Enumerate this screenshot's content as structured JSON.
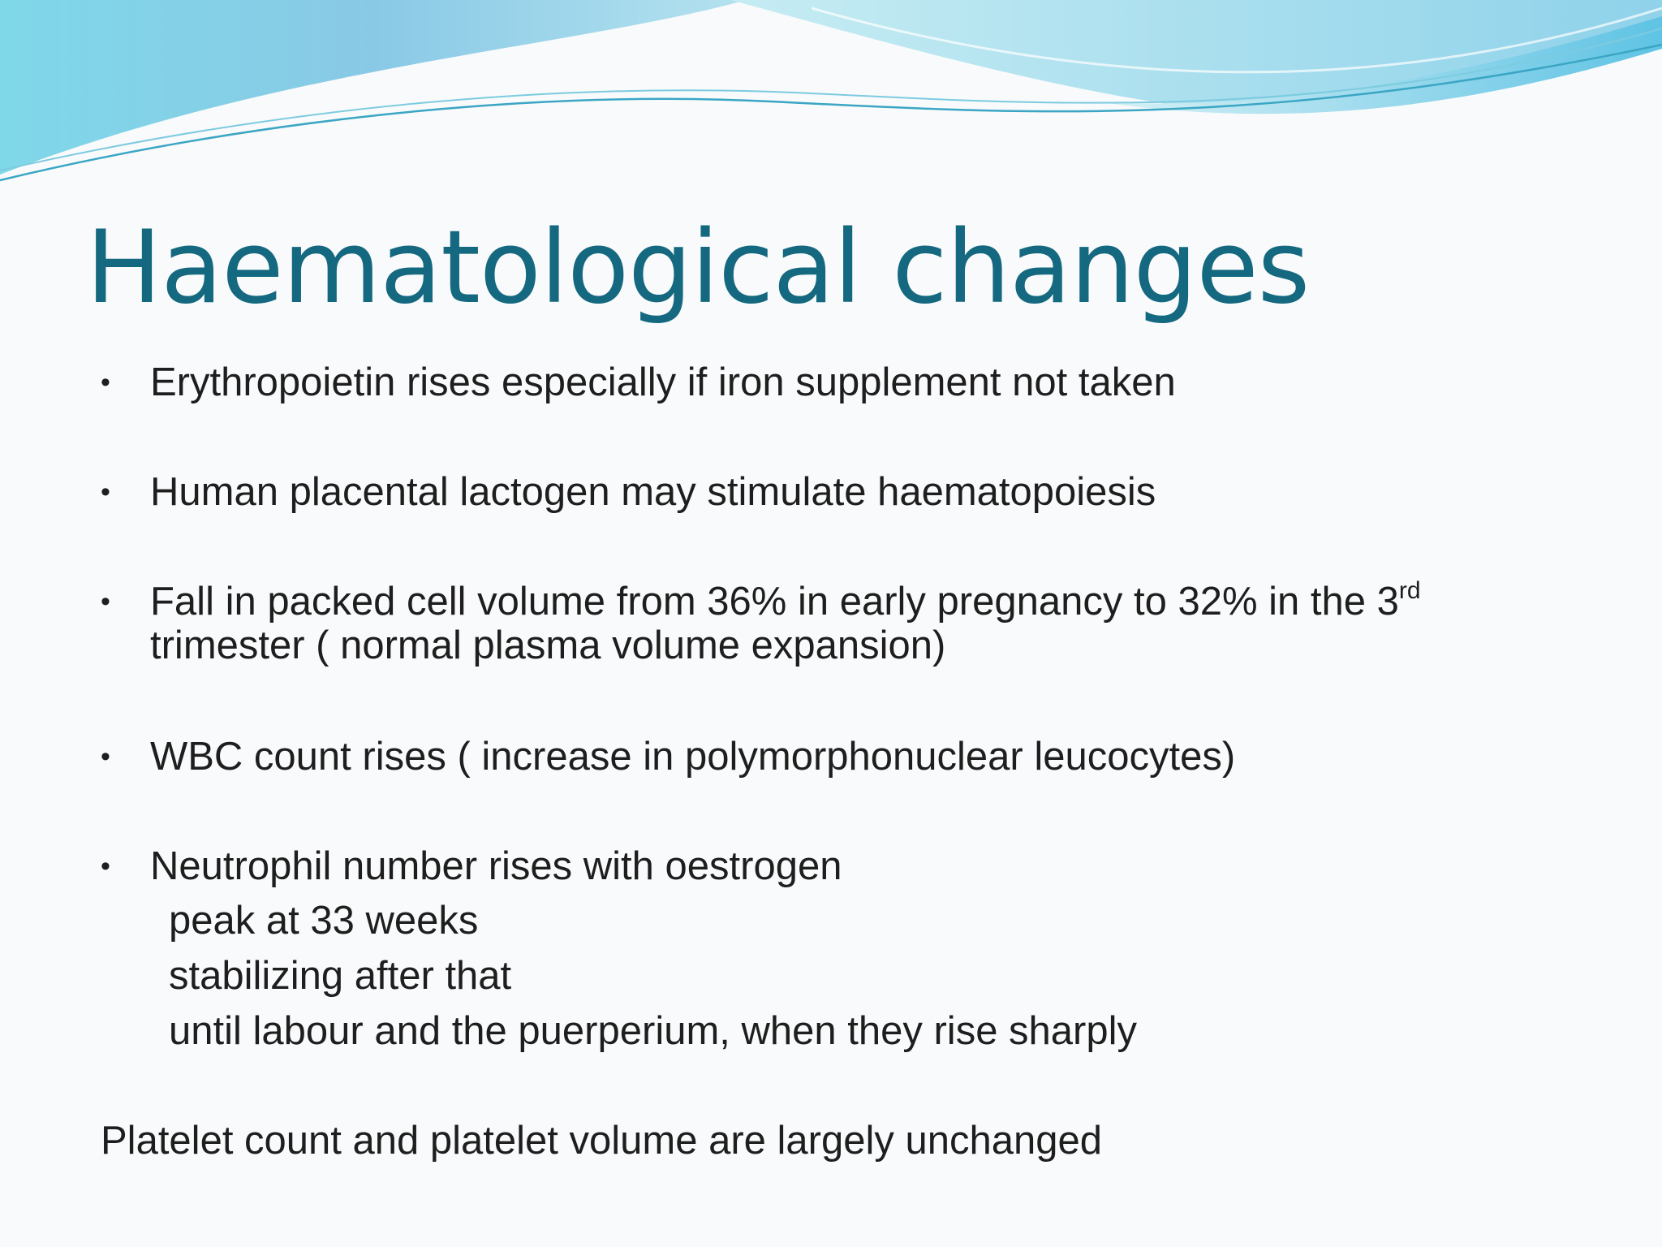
{
  "slide": {
    "title": "Haematological changes",
    "bullet_symbol": "•",
    "bullets": [
      {
        "text": "Erythropoietin rises especially if iron supplement not taken"
      },
      {
        "text": "Human placental lactogen may stimulate haematopoiesis"
      },
      {
        "line1_text": "Fall in packed cell volume from 36% in early pregnancy to 32% in the 3",
        "line1_sup": "rd",
        "line2_text": "trimester ( normal plasma volume expansion)"
      },
      {
        "text": "WBC count rises ( increase in polymorphonuclear leucocytes)"
      },
      {
        "text": "Neutrophil number rises with oestrogen",
        "sublines": [
          "peak at 33 weeks",
          "stabilizing after that",
          "until labour and the puerperium, when they rise sharply"
        ]
      }
    ],
    "footer_text": "Platelet count and platelet volume are largely unchanged"
  },
  "colors": {
    "title": "#14687f",
    "body_text": "#1e1e1e",
    "background": "#f9fafb",
    "wave_light": "#a8dcec",
    "wave_mid": "#6ccbe0",
    "wave_deep": "#4ab5d6"
  }
}
